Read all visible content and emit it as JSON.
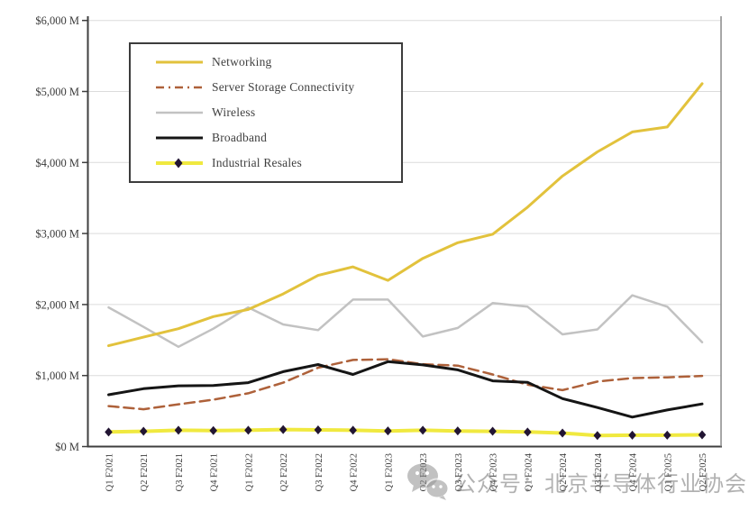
{
  "chart_data": {
    "type": "line",
    "title": "",
    "categories": [
      "Q1 F2021",
      "Q2 F2021",
      "Q3 F2021",
      "Q4 F2021",
      "Q1 F2022",
      "Q2 F2022",
      "Q3 F2022",
      "Q4 F2022",
      "Q1 F2023",
      "Q2 F2023",
      "Q3 F2023",
      "Q4 F2023",
      "Q1 F2024",
      "Q2 F2024",
      "Q3 F2024",
      "Q4 F2024",
      "Q1 F2025",
      "Q2 F2025"
    ],
    "unit": "$M",
    "ylim": [
      0,
      6000
    ],
    "y_tick_step": 1000,
    "y_tick_labels": [
      "$0 M",
      "$1,000 M",
      "$2,000 M",
      "$3,000 M",
      "$4,000 M",
      "$5,000 M",
      "$6,000 M"
    ],
    "grid": true,
    "legend_position": "top-left-inside",
    "series": [
      {
        "name": "Networking",
        "color": "#E2C23C",
        "width": 3,
        "dash": "",
        "marker": "",
        "values": [
          1420,
          1540,
          1660,
          1830,
          1930,
          2150,
          2410,
          2530,
          2340,
          2650,
          2870,
          2990,
          3370,
          3810,
          4150,
          4430,
          4500,
          5110
        ]
      },
      {
        "name": "Server Storage Connectivity",
        "color": "#AE613A",
        "width": 2.5,
        "dash": "11,6",
        "marker": "",
        "values": [
          570,
          525,
          595,
          660,
          750,
          900,
          1110,
          1220,
          1230,
          1160,
          1140,
          1015,
          870,
          795,
          915,
          965,
          975,
          995
        ]
      },
      {
        "name": "Wireless",
        "color": "#C2C2C2",
        "width": 2.5,
        "dash": "",
        "marker": "",
        "values": [
          1960,
          1685,
          1405,
          1660,
          1960,
          1720,
          1640,
          2070,
          2070,
          1550,
          1670,
          2020,
          1970,
          1580,
          1650,
          2130,
          1970,
          1470
        ]
      },
      {
        "name": "Broadband",
        "color": "#151515",
        "width": 3,
        "dash": "",
        "marker": "",
        "values": [
          730,
          815,
          855,
          860,
          900,
          1055,
          1155,
          1015,
          1195,
          1150,
          1080,
          925,
          905,
          675,
          550,
          415,
          515,
          600
        ]
      },
      {
        "name": "Industrial Resales",
        "color": "#F0E93F",
        "width": 4,
        "dash": "",
        "marker": "diamond",
        "marker_color": "#221533",
        "values": [
          205,
          215,
          230,
          225,
          230,
          240,
          235,
          230,
          220,
          230,
          220,
          215,
          205,
          190,
          155,
          160,
          160,
          165
        ]
      }
    ],
    "draw_order": [
      2,
      1,
      3,
      0,
      4
    ]
  },
  "watermark": {
    "text": "公众号：北京半导体行业协会",
    "icon": "wechat-icon",
    "color": "#696969"
  },
  "axis_colors": {
    "axis": "#3f3f3f",
    "right_axis": "#8a8a8a",
    "grid": "#dcdcdc",
    "tick_label": "#3a3a3a"
  }
}
